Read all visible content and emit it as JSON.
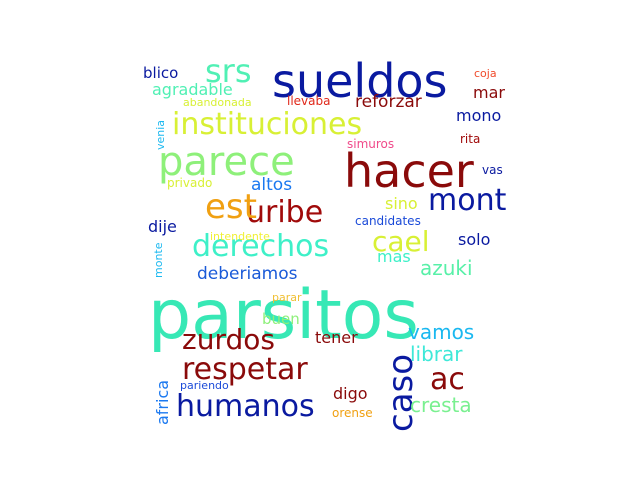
{
  "words": [
    {
      "text": "parsitos",
      "color": "#37e8b5"
    },
    {
      "text": "sueldos",
      "color": "#0a1aa0"
    },
    {
      "text": "hacer",
      "color": "#8a0a0a"
    },
    {
      "text": "parece",
      "color": "#8ef07a"
    },
    {
      "text": "instituciones",
      "color": "#d8f035"
    },
    {
      "text": "derechos",
      "color": "#3ef0c8"
    },
    {
      "text": "respetar",
      "color": "#8a0a0a"
    },
    {
      "text": "humanos",
      "color": "#0a1aa0"
    },
    {
      "text": "zurdos",
      "color": "#8a0a0a"
    },
    {
      "text": "caso",
      "color": "#0a1aa0"
    },
    {
      "text": "uribe",
      "color": "#a00a0a"
    },
    {
      "text": "mont",
      "color": "#0a1aa0"
    },
    {
      "text": "est",
      "color": "#f0a012"
    },
    {
      "text": "srs",
      "color": "#50f0b4"
    },
    {
      "text": "cael",
      "color": "#d8f035"
    },
    {
      "text": "ac",
      "color": "#8a0a0a"
    },
    {
      "text": "cresta",
      "color": "#7af090"
    },
    {
      "text": "librar",
      "color": "#3ee8d8"
    },
    {
      "text": "vamos",
      "color": "#1ab8f0"
    },
    {
      "text": "azuki",
      "color": "#58f0a8"
    },
    {
      "text": "deberiamos",
      "color": "#1a5ad8"
    },
    {
      "text": "altos",
      "color": "#1a78f0"
    },
    {
      "text": "agradable",
      "color": "#50f0b4"
    },
    {
      "text": "reforzar",
      "color": "#8a0a0a"
    },
    {
      "text": "blico",
      "color": "#0a1aa0"
    },
    {
      "text": "mono",
      "color": "#0a1aa0"
    },
    {
      "text": "mar",
      "color": "#8a0a0a"
    },
    {
      "text": "dije",
      "color": "#0a1aa0"
    },
    {
      "text": "solo",
      "color": "#0a1aa0"
    },
    {
      "text": "sino",
      "color": "#d8f035"
    },
    {
      "text": "mas",
      "color": "#3ef0c8"
    },
    {
      "text": "tener",
      "color": "#8a0a0a"
    },
    {
      "text": "buen",
      "color": "#8ef07a"
    },
    {
      "text": "digo",
      "color": "#8a0a0a"
    },
    {
      "text": "africa",
      "color": "#1a78f0"
    },
    {
      "text": "coja",
      "color": "#f04a2a"
    },
    {
      "text": "abandonada",
      "color": "#d8f035"
    },
    {
      "text": "llevaba",
      "color": "#e0281a"
    },
    {
      "text": "simuros",
      "color": "#f04a8a"
    },
    {
      "text": "rita",
      "color": "#a00a0a"
    },
    {
      "text": "venia",
      "color": "#1ab8f0"
    },
    {
      "text": "vas",
      "color": "#0a1aa0"
    },
    {
      "text": "privado",
      "color": "#d8f035"
    },
    {
      "text": "candidates",
      "color": "#1a4ad8"
    },
    {
      "text": "intendente",
      "color": "#f0f035"
    },
    {
      "text": "monte",
      "color": "#1ab8f0"
    },
    {
      "text": "parar",
      "color": "#f0c035"
    },
    {
      "text": "pariendo",
      "color": "#1a4ad8"
    },
    {
      "text": "orense",
      "color": "#f0a012"
    }
  ]
}
